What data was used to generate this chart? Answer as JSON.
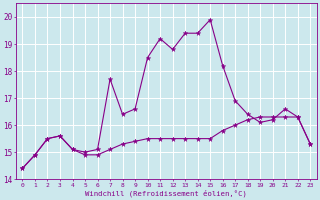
{
  "xlabel": "Windchill (Refroidissement éolien,°C)",
  "background_color": "#cce8ed",
  "grid_color": "#ffffff",
  "line_color": "#880088",
  "xlim": [
    -0.5,
    23.5
  ],
  "ylim": [
    14.0,
    20.5
  ],
  "yticks": [
    14,
    15,
    16,
    17,
    18,
    19,
    20
  ],
  "xticks": [
    0,
    1,
    2,
    3,
    4,
    5,
    6,
    7,
    8,
    9,
    10,
    11,
    12,
    13,
    14,
    15,
    16,
    17,
    18,
    19,
    20,
    21,
    22,
    23
  ],
  "hours": [
    0,
    1,
    2,
    3,
    4,
    5,
    6,
    7,
    8,
    9,
    10,
    11,
    12,
    13,
    14,
    15,
    16,
    17,
    18,
    19,
    20,
    21,
    22,
    23
  ],
  "temp": [
    14.4,
    14.9,
    15.5,
    15.6,
    15.1,
    15.0,
    15.1,
    17.7,
    16.4,
    16.6,
    18.5,
    19.2,
    18.8,
    19.4,
    19.4,
    19.9,
    18.2,
    16.9,
    16.4,
    16.1,
    16.2,
    16.6,
    16.3,
    15.3
  ],
  "windchill": [
    14.4,
    14.9,
    15.5,
    15.6,
    15.1,
    14.9,
    14.9,
    15.1,
    15.3,
    15.4,
    15.5,
    15.5,
    15.5,
    15.5,
    15.5,
    15.5,
    15.8,
    16.0,
    16.2,
    16.3,
    16.3,
    16.3,
    16.3,
    15.3
  ]
}
